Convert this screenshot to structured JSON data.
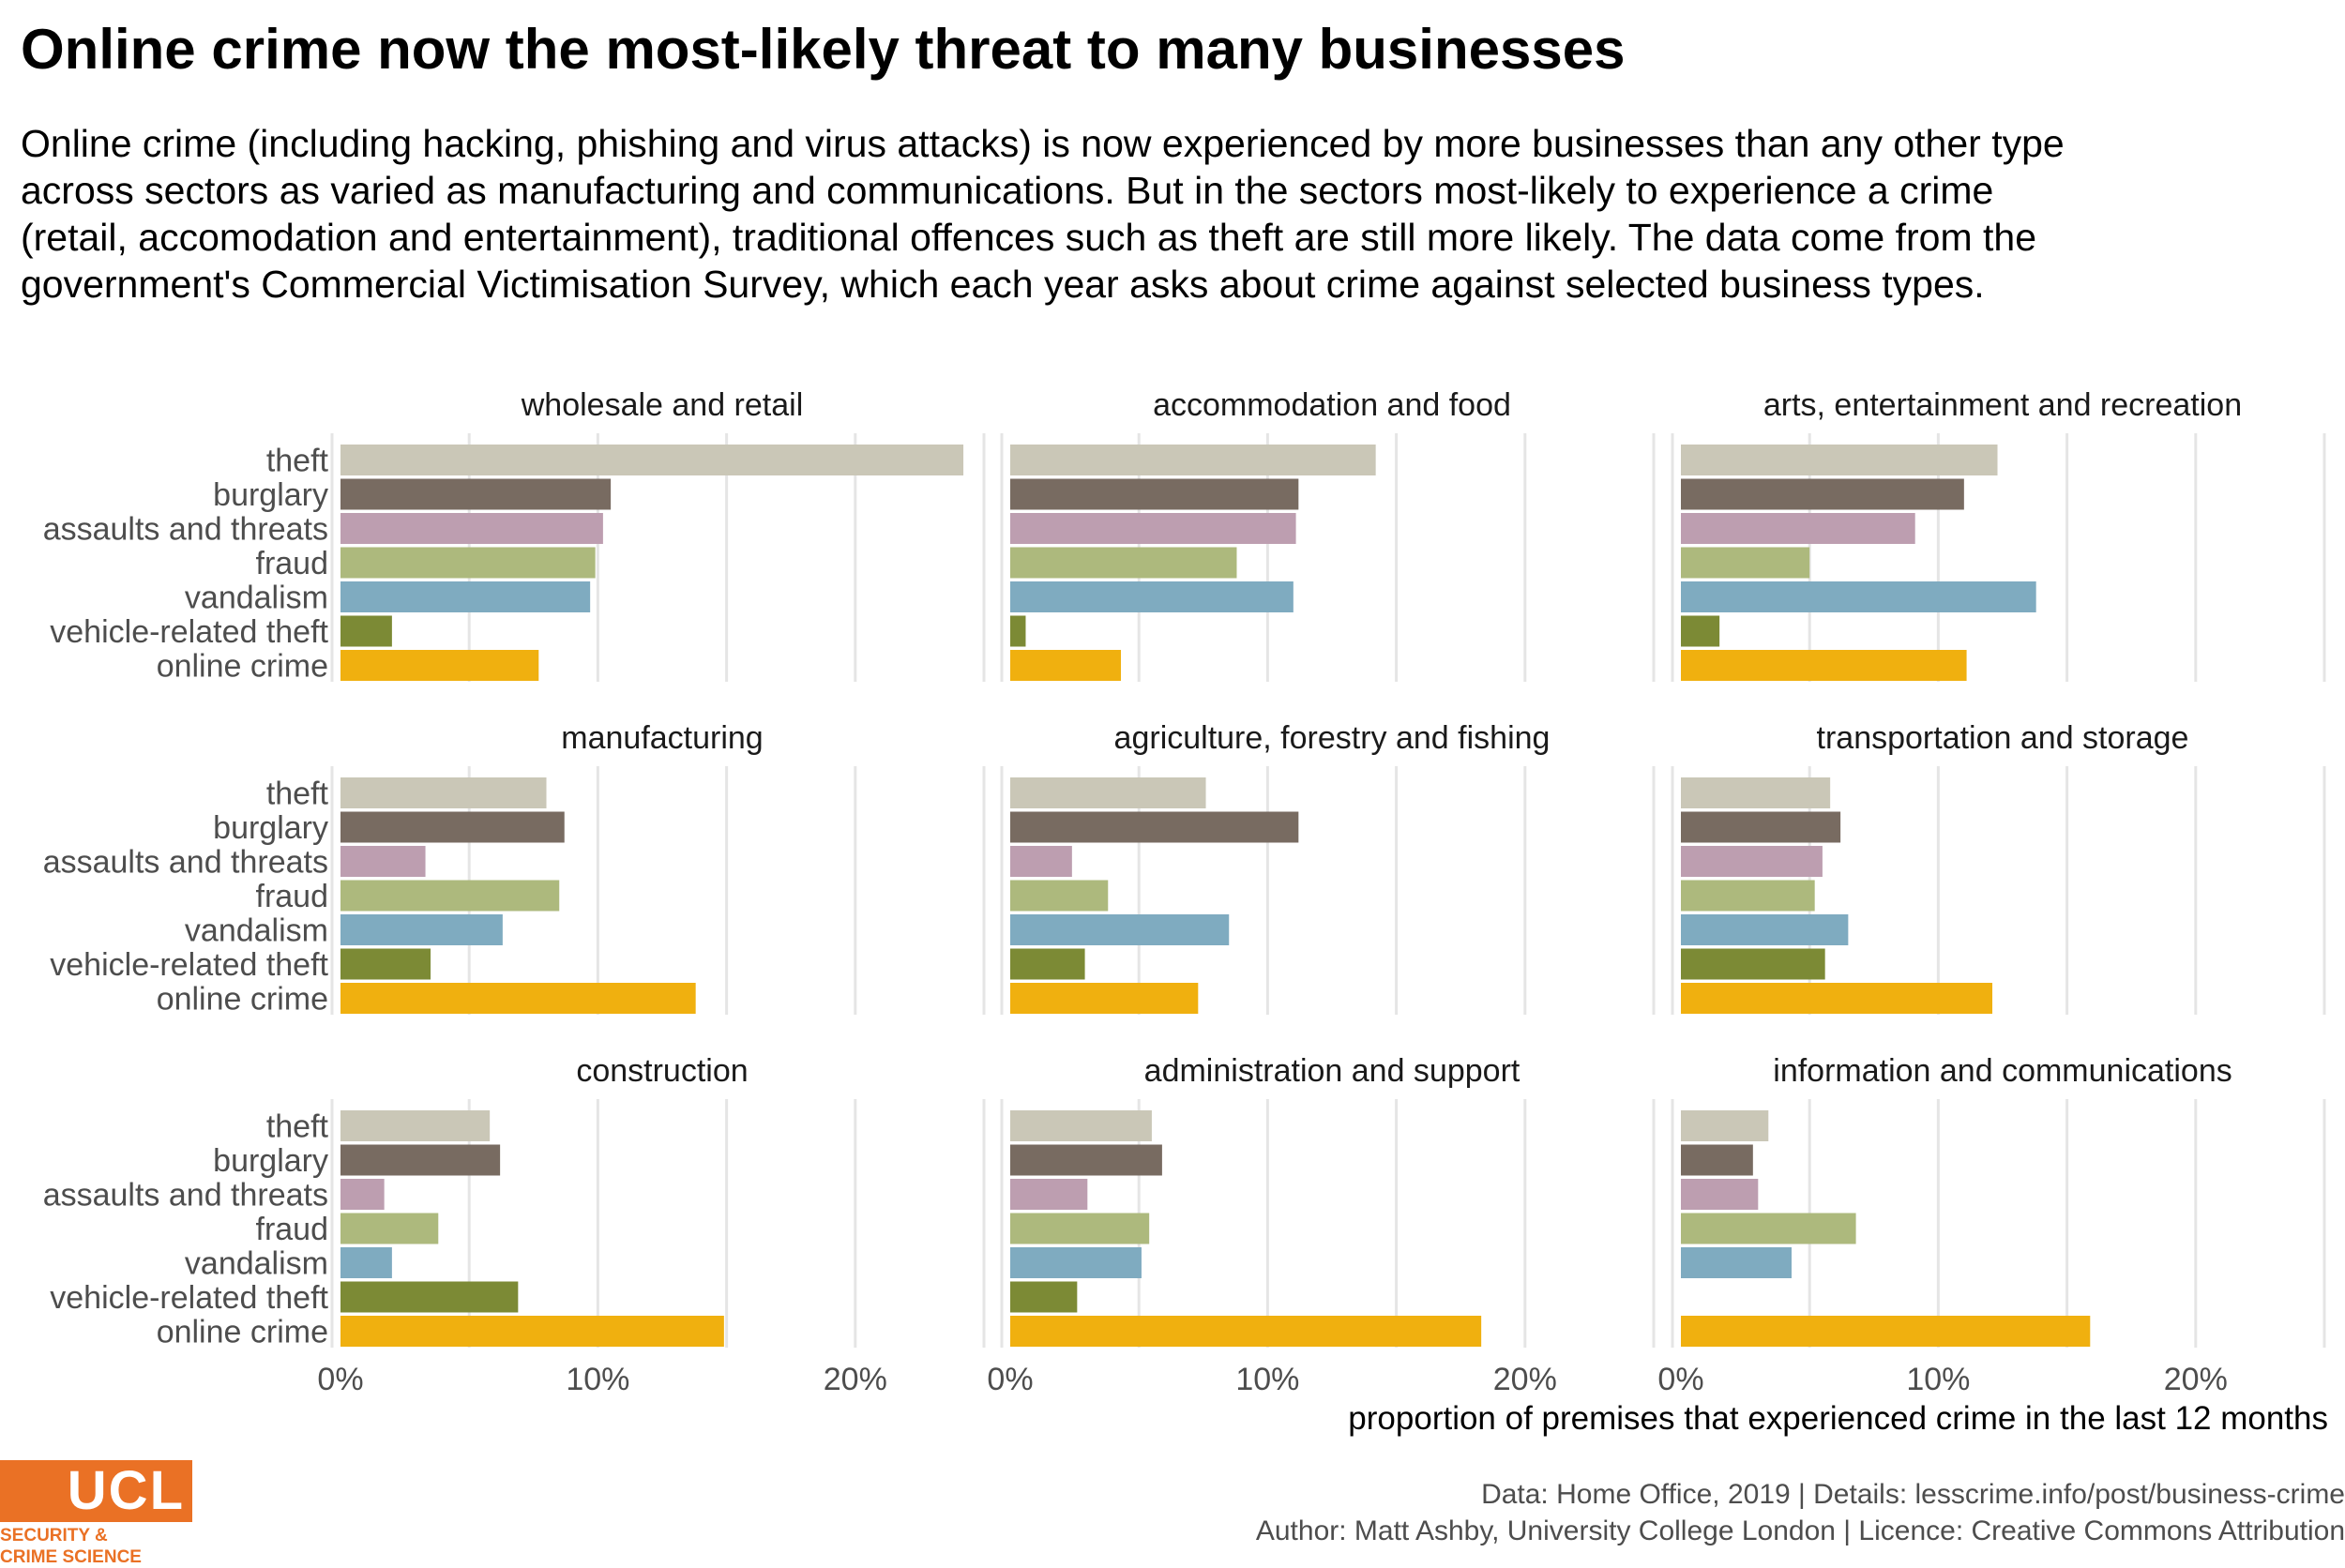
{
  "header": {
    "title": "Online crime now the most-likely threat to many businesses",
    "subtitle": "Online crime (including hacking, phishing and virus attacks) is now experienced by more businesses than any other type across sectors as varied as manufacturing and communications. But in the sectors most-likely to experience a crime (retail, accomodation and entertainment), traditional offences such as theft are still more likely. The data come from the government's Commercial Victimisation Survey, which each year asks about crime against selected business types."
  },
  "chart_data": {
    "type": "bar",
    "orientation": "horizontal",
    "xlabel": "proportion of premises that experienced crime in the last 12 months",
    "xlim": [
      0,
      0.25
    ],
    "x_ticks": [
      0,
      0.1,
      0.2
    ],
    "x_tick_labels": [
      "0%",
      "10%",
      "20%"
    ],
    "grid": true,
    "categories": [
      "theft",
      "burglary",
      "assaults and threats",
      "fraud",
      "vandalism",
      "vehicle-related theft",
      "online crime"
    ],
    "colors": [
      "#cac7b7",
      "#786b61",
      "#bd9eb0",
      "#adb97d",
      "#7fabc0",
      "#7c8a35",
      "#f0b00f"
    ],
    "panels": [
      {
        "name": "wholesale and retail",
        "values": [
          0.242,
          0.105,
          0.102,
          0.099,
          0.097,
          0.02,
          0.077
        ]
      },
      {
        "name": "accommodation and food",
        "values": [
          0.142,
          0.112,
          0.111,
          0.088,
          0.11,
          0.006,
          0.043
        ]
      },
      {
        "name": "arts, entertainment and recreation",
        "values": [
          0.123,
          0.11,
          0.091,
          0.05,
          0.138,
          0.015,
          0.111
        ]
      },
      {
        "name": "manufacturing",
        "values": [
          0.08,
          0.087,
          0.033,
          0.085,
          0.063,
          0.035,
          0.138
        ]
      },
      {
        "name": "agriculture, forestry and fishing",
        "values": [
          0.076,
          0.112,
          0.024,
          0.038,
          0.085,
          0.029,
          0.073
        ]
      },
      {
        "name": "transportation and storage",
        "values": [
          0.058,
          0.062,
          0.055,
          0.052,
          0.065,
          0.056,
          0.121
        ]
      },
      {
        "name": "construction",
        "values": [
          0.058,
          0.062,
          0.017,
          0.038,
          0.02,
          0.069,
          0.149
        ]
      },
      {
        "name": "administration and support",
        "values": [
          0.055,
          0.059,
          0.03,
          0.054,
          0.051,
          0.026,
          0.183
        ]
      },
      {
        "name": "information and communications",
        "values": [
          0.034,
          0.028,
          0.03,
          0.068,
          0.043,
          0.0,
          0.159
        ]
      }
    ]
  },
  "caption": {
    "line1": "Data: Home Office, 2019 |  Details: lesscrime.info/post/business-crime",
    "line2": "Author: Matt Ashby, University College London |  Licence: Creative Commons Attribution"
  },
  "logo": {
    "wordmark": "UCL",
    "line1": "SECURITY &",
    "line2": "CRIME SCIENCE"
  }
}
